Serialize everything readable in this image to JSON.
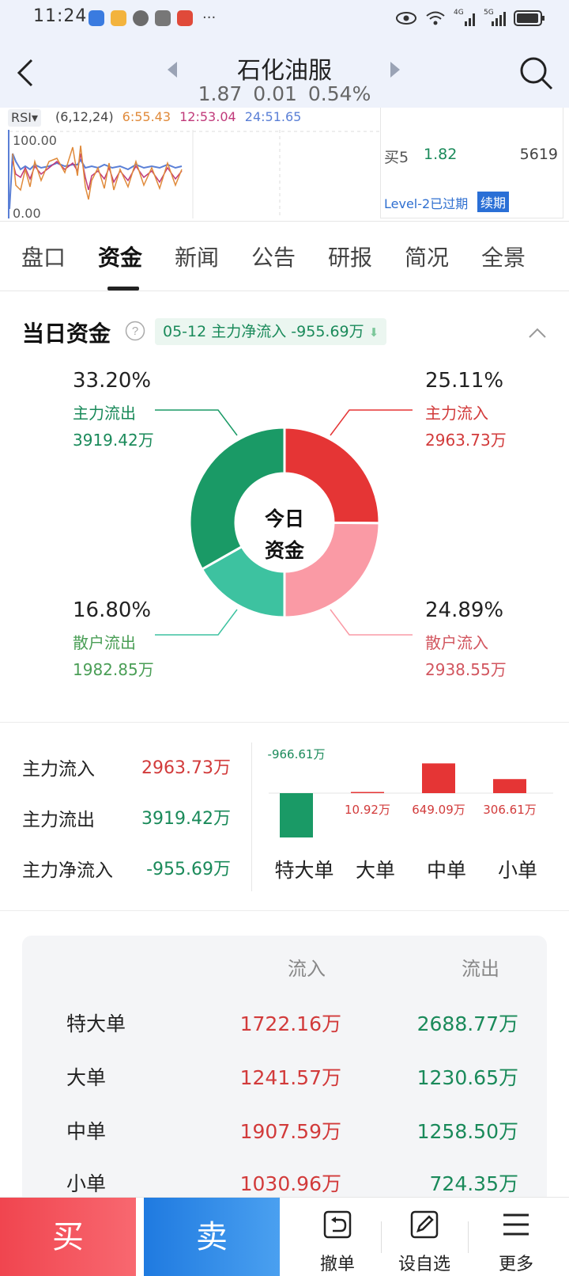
{
  "status_bar": {
    "time": "11:24",
    "more": "···",
    "net1": "4G",
    "net2": "5G"
  },
  "header": {
    "title": "石化油服",
    "price": "1.87",
    "change": "0.01",
    "change_pct": "0.54%"
  },
  "rsi": {
    "tag": "RSI▾",
    "params": "(6,12,24)",
    "v6": "6:55.43",
    "v12": "12:53.04",
    "v24": "24:51.65",
    "top_label": "100.00",
    "bottom_label": "0.00",
    "colors": {
      "v6": "#e08a3a",
      "v12": "#c0397a",
      "v24": "#5a7fd6"
    }
  },
  "order_panel": {
    "buy5_label": "买5",
    "buy5_price": "1.82",
    "buy5_volume": "5619",
    "level2_text": "Level-2已过期",
    "renew_label": "续期"
  },
  "tabs": [
    {
      "label": "盘口"
    },
    {
      "label": "资金"
    },
    {
      "label": "新闻"
    },
    {
      "label": "公告"
    },
    {
      "label": "研报"
    },
    {
      "label": "简况"
    },
    {
      "label": "全景"
    }
  ],
  "active_tab": "资金",
  "daily_funds": {
    "title": "当日资金",
    "net_chip": "05-12 主力净流入 -955.69万",
    "center_line1": "今日",
    "center_line2": "资金",
    "slices": [
      {
        "key": "main_in",
        "pct": "25.11%",
        "label": "主力流入",
        "amount": "2963.73万",
        "value": 25.11,
        "color": "#e53535"
      },
      {
        "key": "retail_in",
        "pct": "24.89%",
        "label": "散户流入",
        "amount": "2938.55万",
        "value": 24.89,
        "color": "#fa9aa5"
      },
      {
        "key": "retail_out",
        "pct": "16.80%",
        "label": "散户流出",
        "amount": "1982.85万",
        "value": 16.8,
        "color": "#3dc2a0"
      },
      {
        "key": "main_out",
        "pct": "33.20%",
        "label": "主力流出",
        "amount": "3919.42万",
        "value": 33.2,
        "color": "#1a9a66"
      }
    ]
  },
  "summary": {
    "rows": [
      {
        "label": "主力流入",
        "value": "2963.73万"
      },
      {
        "label": "主力流出",
        "value": "3919.42万"
      },
      {
        "label": "主力净流入",
        "value": "-955.69万"
      }
    ]
  },
  "chart_data": {
    "type": "bar",
    "categories": [
      "特大单",
      "大单",
      "中单",
      "小单"
    ],
    "values": [
      -966.61,
      10.92,
      649.09,
      306.61
    ],
    "value_labels": [
      "-966.61万",
      "10.92万",
      "649.09万",
      "306.61万"
    ],
    "colors": {
      "positive": "#e53535",
      "negative": "#1a9a66"
    }
  },
  "flow_table": {
    "col_in": "流入",
    "col_out": "流出",
    "rows": [
      {
        "name": "特大单",
        "in": "1722.16万",
        "out": "2688.77万"
      },
      {
        "name": "大单",
        "in": "1241.57万",
        "out": "1230.65万"
      },
      {
        "name": "中单",
        "in": "1907.59万",
        "out": "1258.50万"
      },
      {
        "name": "小单",
        "in": "1030.96万",
        "out": "724.35万"
      }
    ]
  },
  "bottom_bar": {
    "buy": "买",
    "sell": "卖",
    "tools": [
      {
        "label": "撤单",
        "icon": "undo-icon"
      },
      {
        "label": "设自选",
        "icon": "edit-icon"
      },
      {
        "label": "更多",
        "icon": "menu-icon"
      }
    ]
  }
}
